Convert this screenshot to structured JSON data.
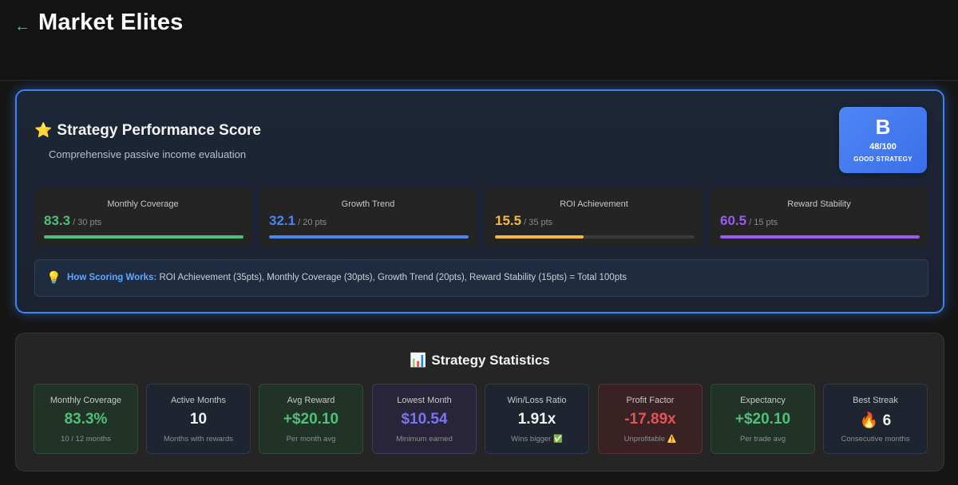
{
  "header": {
    "back_icon": "←",
    "title": "Market Elites"
  },
  "score_card": {
    "star_icon": "⭐",
    "title": "Strategy Performance Score",
    "subtitle": "Comprehensive passive income evaluation",
    "grade": {
      "letter": "B",
      "score": "48/100",
      "label": "GOOD STRATEGY"
    },
    "metrics": [
      {
        "name": "Monthly Coverage",
        "value": "83.3",
        "max": "/ 30 pts",
        "progress": 1.0,
        "color": "#4ec07a"
      },
      {
        "name": "Growth Trend",
        "value": "32.1",
        "max": "/ 20 pts",
        "progress": 1.0,
        "color": "#4a86f0"
      },
      {
        "name": "ROI Achievement",
        "value": "15.5",
        "max": "/ 35 pts",
        "progress": 0.443,
        "color": "#f5b940"
      },
      {
        "name": "Reward Stability",
        "value": "60.5",
        "max": "/ 15 pts",
        "progress": 1.0,
        "color": "#9a5cf0"
      }
    ],
    "info": {
      "icon": "💡",
      "label": "How Scoring Works:",
      "text": " ROI Achievement (35pts), Monthly Coverage (30pts), Growth Trend (20pts), Reward Stability (15pts) = Total 100pts"
    }
  },
  "stats_card": {
    "icon": "📊",
    "title": "Strategy Statistics",
    "items": [
      {
        "label": "Monthly Coverage",
        "value": "83.3%",
        "sub": "10 / 12 months",
        "color": "#4ec07a",
        "theme": "green"
      },
      {
        "label": "Active Months",
        "value": "10",
        "sub": "Months with rewards",
        "color": "#f2f2f2",
        "theme": "slate"
      },
      {
        "label": "Avg Reward",
        "value": "+$20.10",
        "sub": "Per month avg",
        "color": "#4ec07a",
        "theme": "green"
      },
      {
        "label": "Lowest Month",
        "value": "$10.54",
        "sub": "Minimum earned",
        "color": "#7b74f0",
        "theme": "purple"
      },
      {
        "label": "Win/Loss Ratio",
        "value": "1.91x",
        "sub": "Wins bigger ✅",
        "color": "#f2f2f2",
        "theme": "slate"
      },
      {
        "label": "Profit Factor",
        "value": "-17.89x",
        "sub": "Unprofitable ⚠️",
        "color": "#e05555",
        "theme": "red"
      },
      {
        "label": "Expectancy",
        "value": "+$20.10",
        "sub": "Per trade avg",
        "color": "#4ec07a",
        "theme": "green"
      },
      {
        "label": "Best Streak",
        "value": "🔥 6",
        "sub": "Consecutive months",
        "color": "#f2f2f2",
        "theme": "slate"
      }
    ]
  }
}
